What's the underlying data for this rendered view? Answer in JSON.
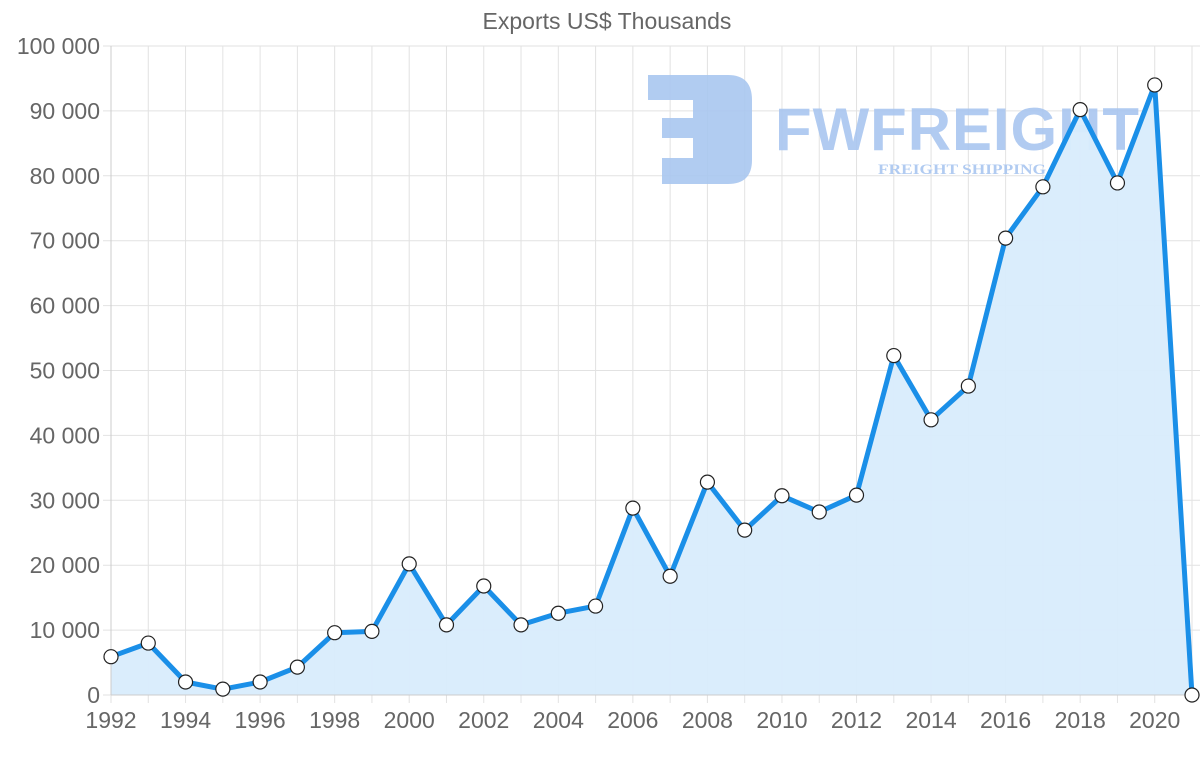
{
  "chart_data": {
    "type": "line",
    "title": "Exports US$ Thousands",
    "xlabel": "",
    "ylabel": "",
    "ylim": [
      0,
      100000
    ],
    "xlim": [
      1992,
      2021
    ],
    "grid": true,
    "legend": null,
    "area_fill": true,
    "x": [
      1992,
      1993,
      1994,
      1995,
      1996,
      1997,
      1998,
      1999,
      2000,
      2001,
      2002,
      2003,
      2004,
      2005,
      2006,
      2007,
      2008,
      2009,
      2010,
      2011,
      2012,
      2013,
      2014,
      2015,
      2016,
      2017,
      2018,
      2019,
      2020,
      2021
    ],
    "series": [
      {
        "name": "Exports US$ Thousands",
        "values": [
          5900,
          8000,
          2000,
          900,
          2000,
          4300,
          9600,
          9800,
          20200,
          10800,
          16800,
          10800,
          12600,
          13700,
          28800,
          18300,
          32800,
          25400,
          30700,
          28200,
          30800,
          52300,
          42400,
          47600,
          70400,
          78300,
          90200,
          78900,
          94000,
          0
        ]
      }
    ],
    "y_ticks": [
      "0",
      "10 000",
      "20 000",
      "30 000",
      "40 000",
      "50 000",
      "60 000",
      "70 000",
      "80 000",
      "90 000",
      "100 000"
    ],
    "y_tick_values": [
      0,
      10000,
      20000,
      30000,
      40000,
      50000,
      60000,
      70000,
      80000,
      90000,
      100000
    ],
    "x_ticks": [
      "1992",
      "1994",
      "1996",
      "1998",
      "2000",
      "2002",
      "2004",
      "2006",
      "2008",
      "2010",
      "2012",
      "2014",
      "2016",
      "2018",
      "2020"
    ],
    "colors": {
      "line": "#1a8fe8",
      "fill": "#d8ecfc",
      "point_fill": "#ffffff",
      "point_stroke": "#222222",
      "grid": "#e2e2e2",
      "axis_text": "#666666"
    }
  },
  "watermark": {
    "brand": "FWFREIGHT",
    "tagline": "FREIGHT SHIPPING",
    "color": "#a9c6f0"
  }
}
